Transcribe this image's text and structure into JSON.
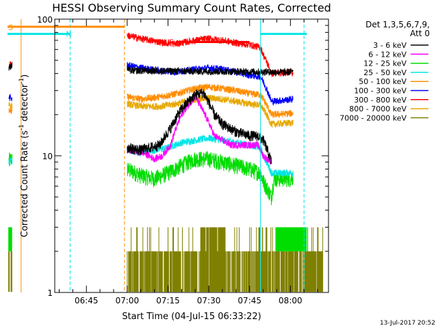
{
  "chart_data": {
    "type": "line",
    "title": "HESSI Observing Summary Count Rates, Corrected",
    "xlabel": "Start Time (04-Jul-15 06:33:22)",
    "ylabel": "Corrected Count Rate (s⁻¹ detector⁻¹)",
    "ylabel_main": "Corrected Count Rate (s",
    "ylabel_mid": " detector",
    "ylabel_end": ")",
    "ylabel_sup": "-1",
    "y_scale": "log",
    "ylim": [
      1,
      100
    ],
    "xlim": [
      "06:33:22",
      "08:14:00"
    ],
    "xticks": [
      "06:45",
      "07:00",
      "07:15",
      "07:30",
      "07:45",
      "08:00"
    ],
    "xtick_minutes": [
      405,
      420,
      435,
      450,
      465,
      480
    ],
    "yticks": [
      "1",
      "10",
      "100"
    ],
    "ytick_values": [
      1,
      10,
      100
    ],
    "detector_label": "Det 1,3,5,6,7,9,",
    "attenuator_label": "Att 0",
    "footer_date": "13-Jul-2017 20:52",
    "series": [
      {
        "name": "3 - 6 keV",
        "color": "#000000",
        "pts": [
          [
            376.5,
            44
          ],
          [
            377.5,
            46
          ],
          [
            420,
            44
          ],
          [
            421,
            42
          ],
          [
            480,
            41
          ],
          [
            481,
            43
          ]
        ],
        "hump": [
          [
            420,
            11.5
          ],
          [
            425,
            11
          ],
          [
            432,
            12
          ],
          [
            436,
            16
          ],
          [
            440,
            22
          ],
          [
            445,
            28
          ],
          [
            448,
            29
          ],
          [
            452,
            20
          ],
          [
            455,
            17
          ],
          [
            460,
            15
          ],
          [
            465,
            14
          ],
          [
            468,
            14
          ],
          [
            470,
            13
          ],
          [
            473,
            9
          ]
        ]
      },
      {
        "name": "6 - 12 keV",
        "color": "#ff00ff",
        "pts": [
          [
            420,
            11
          ],
          [
            426,
            10.5
          ],
          [
            430,
            9.5
          ],
          [
            433,
            10
          ],
          [
            436,
            12
          ],
          [
            440,
            20
          ],
          [
            445,
            27
          ],
          [
            448,
            21
          ],
          [
            452,
            14
          ],
          [
            458,
            12
          ],
          [
            463,
            12
          ],
          [
            468,
            12
          ],
          [
            470,
            10
          ],
          [
            473,
            9
          ]
        ]
      },
      {
        "name": "12 - 25 keV",
        "color": "#00dd00",
        "pts": [
          [
            376.5,
            9.2
          ],
          [
            377.5,
            9.5
          ],
          [
            420,
            8
          ],
          [
            425,
            7.2
          ],
          [
            430,
            6.8
          ],
          [
            435,
            7.5
          ],
          [
            440,
            8.5
          ],
          [
            445,
            9.5
          ],
          [
            450,
            9.5
          ],
          [
            455,
            9
          ],
          [
            460,
            8.5
          ],
          [
            465,
            8
          ],
          [
            469,
            7.5
          ],
          [
            470,
            6.5
          ],
          [
            473,
            5
          ],
          [
            474,
            6.8
          ],
          [
            480,
            6.8
          ],
          [
            481,
            7
          ]
        ]
      },
      {
        "name": "25 - 50 keV",
        "color": "#00e5e5",
        "pts": [
          [
            376.5,
            9
          ],
          [
            377.5,
            9.2
          ],
          [
            420,
            11
          ],
          [
            425,
            10.5
          ],
          [
            430,
            11
          ],
          [
            435,
            11.5
          ],
          [
            440,
            12.5
          ],
          [
            445,
            13
          ],
          [
            450,
            13.5
          ],
          [
            455,
            13
          ],
          [
            460,
            12.5
          ],
          [
            465,
            12
          ],
          [
            469,
            11.5
          ],
          [
            470,
            10
          ],
          [
            473,
            7.5
          ],
          [
            481,
            7.5
          ]
        ]
      },
      {
        "name": "50 - 100 keV",
        "color": "#ff8c00",
        "pts": [
          [
            376.5,
            22
          ],
          [
            377.5,
            21
          ],
          [
            420,
            27
          ],
          [
            425,
            26
          ],
          [
            432,
            27
          ],
          [
            438,
            28.5
          ],
          [
            445,
            31
          ],
          [
            450,
            32
          ],
          [
            455,
            31
          ],
          [
            460,
            30
          ],
          [
            465,
            28.5
          ],
          [
            469,
            28
          ],
          [
            470,
            26
          ],
          [
            473,
            20
          ],
          [
            481,
            20.5
          ]
        ]
      },
      {
        "name": "100 - 300 keV",
        "color": "#0000ff",
        "pts": [
          [
            376.5,
            27
          ],
          [
            377.5,
            26
          ],
          [
            420,
            46
          ],
          [
            425,
            44
          ],
          [
            432,
            42
          ],
          [
            438,
            41
          ],
          [
            445,
            43
          ],
          [
            450,
            44
          ],
          [
            455,
            43
          ],
          [
            460,
            41
          ],
          [
            465,
            39
          ],
          [
            469,
            38
          ],
          [
            470,
            35
          ],
          [
            473,
            25
          ],
          [
            481,
            26
          ]
        ]
      },
      {
        "name": "300 - 800 keV",
        "color": "#ff0000",
        "pts": [
          [
            376.5,
            46
          ],
          [
            377.5,
            47
          ],
          [
            420,
            76
          ],
          [
            425,
            72
          ],
          [
            432,
            68
          ],
          [
            438,
            66
          ],
          [
            445,
            70
          ],
          [
            450,
            72
          ],
          [
            455,
            70
          ],
          [
            460,
            67
          ],
          [
            465,
            65
          ],
          [
            469,
            62
          ],
          [
            470,
            55
          ],
          [
            473,
            40
          ],
          [
            481,
            41
          ]
        ]
      },
      {
        "name": "800 - 7000 keV",
        "color": "#e6a800",
        "pts": [
          [
            376.5,
            24
          ],
          [
            377.5,
            23
          ],
          [
            420,
            24
          ],
          [
            425,
            23
          ],
          [
            432,
            23
          ],
          [
            438,
            24
          ],
          [
            445,
            26
          ],
          [
            450,
            26.5
          ],
          [
            455,
            26
          ],
          [
            460,
            25
          ],
          [
            465,
            24
          ],
          [
            469,
            23.5
          ],
          [
            470,
            22
          ],
          [
            473,
            17
          ],
          [
            481,
            17.5
          ]
        ]
      },
      {
        "name": "7000 - 20000 keV",
        "color": "#808000",
        "pts": []
      }
    ],
    "vlines": [
      {
        "t": 381,
        "color": "#ff8c00",
        "style": "solid"
      },
      {
        "t": 399,
        "color": "#00e5e5",
        "style": "dashed"
      },
      {
        "t": 419,
        "color": "#ff8c00",
        "style": "dashed"
      },
      {
        "t": 469,
        "color": "#00e5e5",
        "style": "solid"
      },
      {
        "t": 485,
        "color": "#00e5e5",
        "style": "dashed"
      }
    ],
    "bars": [
      {
        "label": "S",
        "color": "#ff8c00",
        "t0": 376,
        "t1": 419,
        "y": 88
      },
      {
        "label": "N",
        "color": "#00e5e5",
        "t0": 376,
        "t1": 399,
        "y": 78
      },
      {
        "label": "",
        "color": "#00e5e5",
        "t0": 469,
        "t1": 486,
        "y": 78
      },
      {
        "label": "F",
        "color": "#ff0000",
        "t0": 438,
        "t1": 465,
        "y": 68
      }
    ]
  }
}
